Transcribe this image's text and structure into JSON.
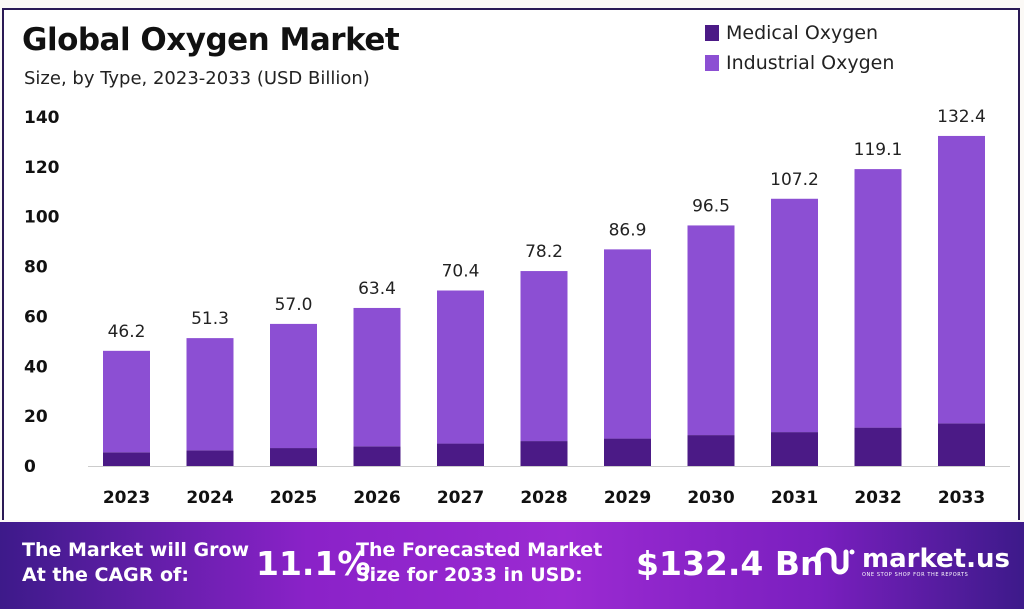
{
  "chart_data": {
    "type": "bar",
    "stacked": true,
    "title": "Global Oxygen Market",
    "subtitle": "Size, by Type, 2023-2033 (USD Billion)",
    "xlabel": "",
    "ylabel": "",
    "categories": [
      "2023",
      "2024",
      "2025",
      "2026",
      "2027",
      "2028",
      "2029",
      "2030",
      "2031",
      "2032",
      "2033"
    ],
    "series": [
      {
        "name": "Medical Oxygen",
        "color": "#4b1a86",
        "values": [
          5.5,
          6.3,
          7.2,
          7.9,
          9.0,
          10.0,
          11.0,
          12.4,
          13.6,
          15.4,
          17.1
        ]
      },
      {
        "name": "Industrial Oxygen",
        "color": "#8c4fd3",
        "values": [
          40.7,
          45.0,
          49.8,
          55.5,
          61.4,
          68.2,
          75.9,
          84.1,
          93.6,
          103.7,
          115.3
        ]
      }
    ],
    "totals": [
      "46.2",
      "51.3",
      "57.0",
      "63.4",
      "70.4",
      "78.2",
      "86.9",
      "96.5",
      "107.2",
      "119.1",
      "132.4"
    ],
    "yticks": [
      "0",
      "20",
      "40",
      "60",
      "80",
      "100",
      "120",
      "140"
    ],
    "ylim": [
      0,
      140
    ],
    "grid": false,
    "legend": "top-right"
  },
  "banner": {
    "cagr_label_1": "The Market will Grow",
    "cagr_label_2": "At the CAGR of:",
    "cagr_value": "11.1%",
    "forecast_label_1": "The Forecasted Market",
    "forecast_label_2": "Size for 2033 in USD:",
    "forecast_value": "$132.4 Bn",
    "logo_text": "market.us",
    "logo_tagline": "ONE STOP SHOP FOR THE REPORTS"
  }
}
